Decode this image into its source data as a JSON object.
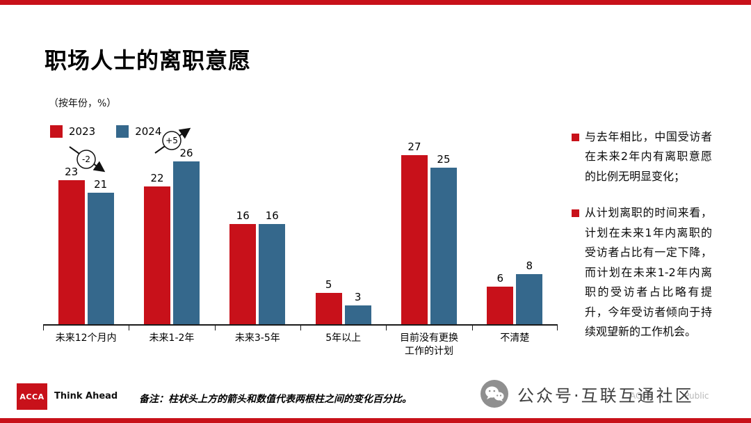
{
  "theme": {
    "red": "#c8111a",
    "blue": "#35688c",
    "axis": "#1a1a1a"
  },
  "slide": {
    "title": "职场人士的离职意愿",
    "subtitle": "（按年份，%）"
  },
  "chart_data": {
    "type": "bar",
    "title": "职场人士的离职意愿",
    "subtitle": "（按年份，%）",
    "categories": [
      "未来12个月内",
      "未来1-2年",
      "未来3-5年",
      "5年以上",
      "目前没有更换\n工作的计划",
      "不清楚"
    ],
    "series": [
      {
        "name": "2023",
        "color": "#c8111a",
        "values": [
          23,
          22,
          16,
          5,
          27,
          6
        ]
      },
      {
        "name": "2024",
        "color": "#35688c",
        "values": [
          21,
          26,
          16,
          3,
          25,
          8
        ]
      }
    ],
    "annotations": [
      {
        "category_index": 0,
        "label": "-2",
        "direction": "down"
      },
      {
        "category_index": 1,
        "label": "+5",
        "direction": "up"
      }
    ],
    "ylim": [
      0,
      30
    ],
    "grid": false,
    "legend_position": "top-left"
  },
  "insights": {
    "items": [
      "与去年相比，中国受访者在未来2年内有离职意愿的比例无明显变化；",
      "从计划离职的时间来看，计划在未来1年内离职的受访者占比有一定下降，而计划在未来1-2年内离职的受访者占比略有提升，今年受访者倾向于持续观望新的工作机会。"
    ]
  },
  "footer": {
    "logo_text": "ACCA",
    "tagline": "Think Ahead",
    "note": "备注：柱状头上方的箭头和数值代表两根柱之间的变化百分比。",
    "wechat_label": "公众号·互联互通社区",
    "watermark_left": "ACCA",
    "watermark_right": "Public"
  }
}
